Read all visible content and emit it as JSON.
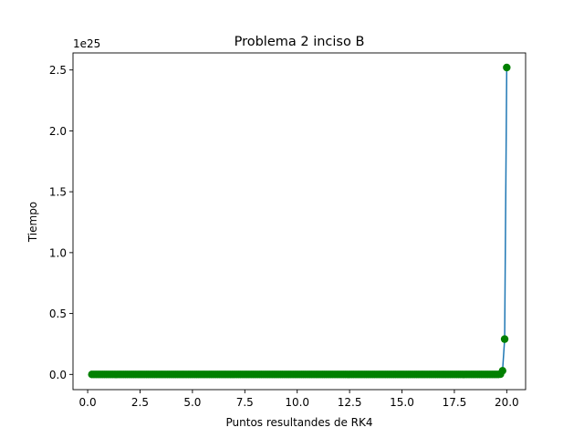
{
  "chart_data": {
    "type": "line",
    "title": "Problema 2 inciso B",
    "xlabel": "Puntos resultandes de RK4",
    "ylabel": "Tiempo",
    "y_offset_label": "1e25",
    "xlim": [
      -0.7,
      20.9
    ],
    "ylim": [
      -0.125,
      2.64
    ],
    "x_ticks": [
      0,
      2.5,
      5,
      7.5,
      10,
      12.5,
      15,
      17.5,
      20
    ],
    "x_tick_labels": [
      "0.0",
      "2.5",
      "5.0",
      "7.5",
      "10.0",
      "12.5",
      "15.0",
      "17.5",
      "20.0"
    ],
    "y_ticks": [
      0,
      0.5,
      1.0,
      1.5,
      2.0,
      2.5
    ],
    "y_tick_labels": [
      "0.0",
      "0.5",
      "1.0",
      "1.5",
      "2.0",
      "2.5"
    ],
    "x_start": 0.2,
    "x_step": 0.1,
    "n_points": 199,
    "tail_values": [
      0.0,
      0.002,
      0.03,
      0.29,
      2.52
    ],
    "line_color": "#1f77b4",
    "marker_color": "#008000",
    "grid": false,
    "legend": "none"
  }
}
